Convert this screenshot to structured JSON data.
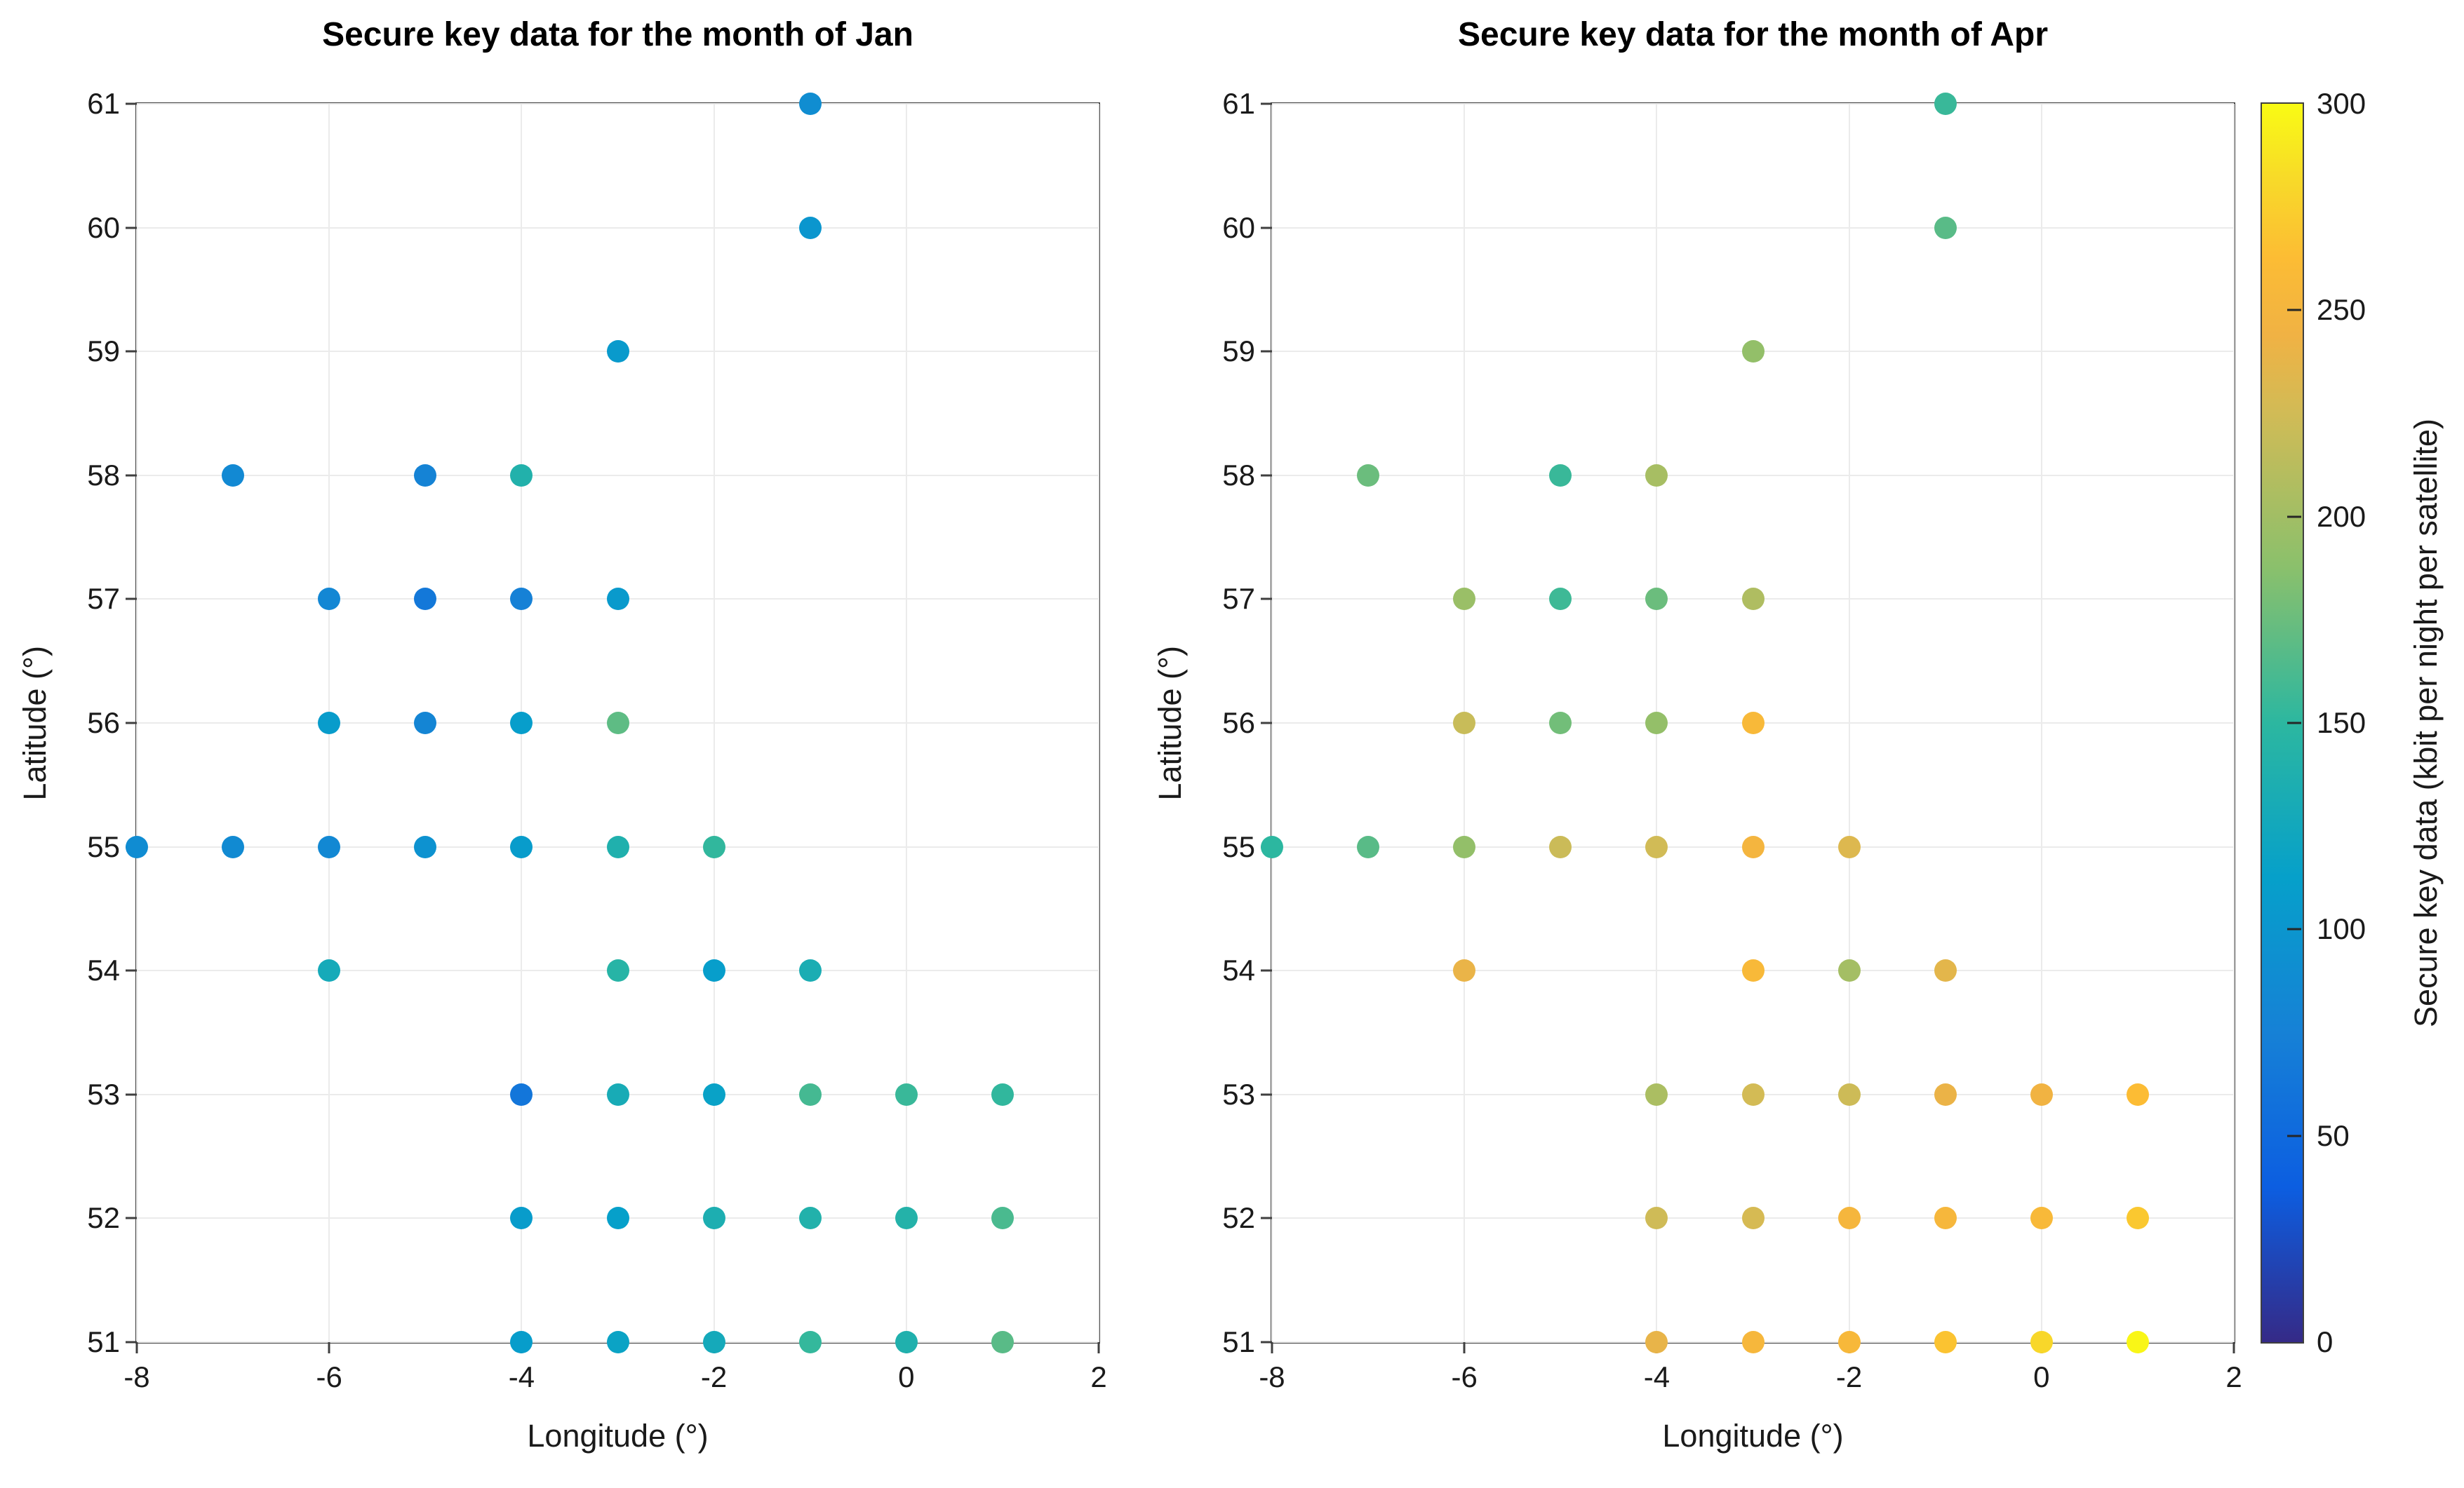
{
  "figure": {
    "background": "#ffffff"
  },
  "style": {
    "grid_color": "#ebebeb",
    "axis_color": "#3f3f3f",
    "tick_label_color": "#1a1a1a",
    "marker_diameter": 32
  },
  "colormap": {
    "name": "parula",
    "stops": [
      {
        "t": 0.0,
        "c": "#352a87"
      },
      {
        "t": 0.125,
        "c": "#0c5ee1"
      },
      {
        "t": 0.25,
        "c": "#1681d6"
      },
      {
        "t": 0.375,
        "c": "#06a0ca"
      },
      {
        "t": 0.5,
        "c": "#2cb7a0"
      },
      {
        "t": 0.625,
        "c": "#8ac06c"
      },
      {
        "t": 0.75,
        "c": "#d1bb56"
      },
      {
        "t": 0.8125,
        "c": "#f0b244"
      },
      {
        "t": 0.875,
        "c": "#fcbc34"
      },
      {
        "t": 0.9375,
        "c": "#f8d929"
      },
      {
        "t": 1.0,
        "c": "#f9fb14"
      }
    ]
  },
  "colorbar": {
    "title": "Secure key data (kbit per night per satellite)",
    "min": 0,
    "max": 300,
    "ticks": [
      0,
      50,
      100,
      150,
      200,
      250,
      300
    ]
  },
  "chart_data": [
    {
      "type": "scatter",
      "title": "Secure key data for the month of Jan",
      "xlabel": "Longitude (°)",
      "ylabel": "Latitude (°)",
      "xlim": [
        -8,
        2
      ],
      "ylim": [
        51,
        61
      ],
      "xticks": [
        -8,
        -6,
        -4,
        -2,
        0,
        2
      ],
      "yticks": [
        51,
        52,
        53,
        54,
        55,
        56,
        57,
        58,
        59,
        60,
        61
      ],
      "grid": true,
      "value_key": "secure_key_kbit",
      "points": [
        [
          -1,
          61,
          90
        ],
        [
          -1,
          60,
          100
        ],
        [
          -3,
          59,
          105
        ],
        [
          -7,
          58,
          85
        ],
        [
          -5,
          58,
          78
        ],
        [
          -4,
          58,
          140
        ],
        [
          -6,
          57,
          82
        ],
        [
          -5,
          57,
          65
        ],
        [
          -4,
          57,
          75
        ],
        [
          -3,
          57,
          105
        ],
        [
          -6,
          56,
          108
        ],
        [
          -5,
          56,
          80
        ],
        [
          -4,
          56,
          110
        ],
        [
          -3,
          56,
          170
        ],
        [
          -8,
          55,
          88
        ],
        [
          -7,
          55,
          86
        ],
        [
          -6,
          55,
          84
        ],
        [
          -5,
          55,
          95
        ],
        [
          -4,
          55,
          108
        ],
        [
          -3,
          55,
          138
        ],
        [
          -2,
          55,
          152
        ],
        [
          -6,
          54,
          128
        ],
        [
          -3,
          54,
          145
        ],
        [
          -2,
          54,
          110
        ],
        [
          -1,
          54,
          133
        ],
        [
          -4,
          53,
          63
        ],
        [
          -3,
          53,
          130
        ],
        [
          -2,
          53,
          115
        ],
        [
          -1,
          53,
          160
        ],
        [
          0,
          53,
          155
        ],
        [
          1,
          53,
          152
        ],
        [
          -4,
          52,
          108
        ],
        [
          -3,
          52,
          112
        ],
        [
          -2,
          52,
          135
        ],
        [
          -1,
          52,
          140
        ],
        [
          0,
          52,
          142
        ],
        [
          1,
          52,
          162
        ],
        [
          -4,
          51,
          109
        ],
        [
          -3,
          51,
          117
        ],
        [
          -2,
          51,
          127
        ],
        [
          -1,
          51,
          153
        ],
        [
          0,
          51,
          138
        ],
        [
          1,
          51,
          168
        ]
      ]
    },
    {
      "type": "scatter",
      "title": "Secure key data for the month of Apr",
      "xlabel": "Longitude (°)",
      "ylabel": "Latitude (°)",
      "xlim": [
        -8,
        2
      ],
      "ylim": [
        51,
        61
      ],
      "xticks": [
        -8,
        -6,
        -4,
        -2,
        0,
        2
      ],
      "yticks": [
        51,
        52,
        53,
        54,
        55,
        56,
        57,
        58,
        59,
        60,
        61
      ],
      "grid": true,
      "value_key": "secure_key_kbit",
      "points": [
        [
          -1,
          61,
          155
        ],
        [
          -1,
          60,
          168
        ],
        [
          -3,
          59,
          192
        ],
        [
          -7,
          58,
          175
        ],
        [
          -5,
          58,
          155
        ],
        [
          -4,
          58,
          203
        ],
        [
          -6,
          57,
          196
        ],
        [
          -5,
          57,
          157
        ],
        [
          -4,
          57,
          175
        ],
        [
          -3,
          57,
          207
        ],
        [
          -6,
          56,
          220
        ],
        [
          -5,
          56,
          178
        ],
        [
          -4,
          56,
          193
        ],
        [
          -3,
          56,
          257
        ],
        [
          -8,
          55,
          150
        ],
        [
          -7,
          55,
          168
        ],
        [
          -6,
          55,
          192
        ],
        [
          -5,
          55,
          222
        ],
        [
          -4,
          55,
          225
        ],
        [
          -3,
          55,
          250
        ],
        [
          -2,
          55,
          232
        ],
        [
          -6,
          54,
          240
        ],
        [
          -3,
          54,
          257
        ],
        [
          -2,
          54,
          201
        ],
        [
          -1,
          54,
          236
        ],
        [
          -4,
          53,
          205
        ],
        [
          -3,
          53,
          226
        ],
        [
          -2,
          53,
          223
        ],
        [
          -1,
          53,
          241
        ],
        [
          0,
          53,
          246
        ],
        [
          1,
          53,
          262
        ],
        [
          -4,
          52,
          224
        ],
        [
          -3,
          52,
          228
        ],
        [
          -2,
          52,
          252
        ],
        [
          -1,
          52,
          253
        ],
        [
          0,
          52,
          257
        ],
        [
          1,
          52,
          270
        ],
        [
          -4,
          51,
          239
        ],
        [
          -3,
          51,
          253
        ],
        [
          -2,
          51,
          255
        ],
        [
          -1,
          51,
          267
        ],
        [
          0,
          51,
          280
        ],
        [
          1,
          51,
          297
        ]
      ]
    }
  ]
}
